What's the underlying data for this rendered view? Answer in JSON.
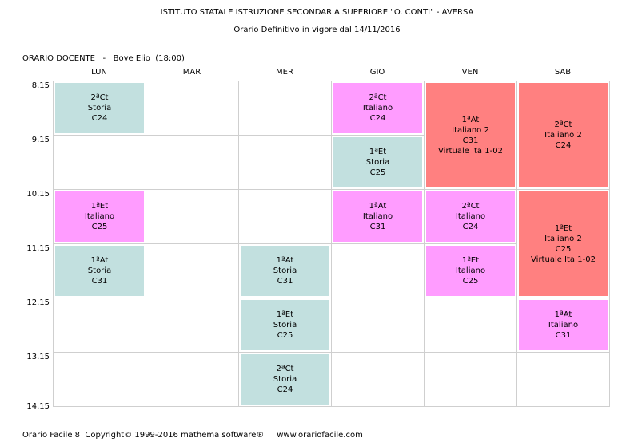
{
  "header": {
    "title": "ISTITUTO STATALE ISTRUZIONE SECONDARIA SUPERIORE \"O. CONTI\" - AVERSA",
    "subtitle": "Orario Definitivo in vigore dal 14/11/2016"
  },
  "teacher_line": "ORARIO DOCENTE   -   Bove Elio  (18:00)",
  "days": [
    "LUN",
    "MAR",
    "MER",
    "GIO",
    "VEN",
    "SAB"
  ],
  "times": [
    "8.15",
    "9.15",
    "10.15",
    "11.15",
    "12.15",
    "13.15",
    "14.15"
  ],
  "colors": {
    "storia": "#c2e0df",
    "italiano": "#ff9cff",
    "italiano2": "#ff8080"
  },
  "lessons": [
    {
      "day": 0,
      "start": 0,
      "span": 1,
      "kind": "storia",
      "lines": [
        "2ªCt",
        "Storia",
        "C24"
      ]
    },
    {
      "day": 0,
      "start": 2,
      "span": 1,
      "kind": "italiano",
      "lines": [
        "1ªEt",
        "Italiano",
        "C25"
      ]
    },
    {
      "day": 0,
      "start": 3,
      "span": 1,
      "kind": "storia",
      "lines": [
        "1ªAt",
        "Storia",
        "C31"
      ]
    },
    {
      "day": 2,
      "start": 3,
      "span": 1,
      "kind": "storia",
      "lines": [
        "1ªAt",
        "Storia",
        "C31"
      ]
    },
    {
      "day": 2,
      "start": 4,
      "span": 1,
      "kind": "storia",
      "lines": [
        "1ªEt",
        "Storia",
        "C25"
      ]
    },
    {
      "day": 2,
      "start": 5,
      "span": 1,
      "kind": "storia",
      "lines": [
        "2ªCt",
        "Storia",
        "C24"
      ]
    },
    {
      "day": 3,
      "start": 0,
      "span": 1,
      "kind": "italiano",
      "lines": [
        "2ªCt",
        "Italiano",
        "C24"
      ]
    },
    {
      "day": 3,
      "start": 1,
      "span": 1,
      "kind": "storia",
      "lines": [
        "1ªEt",
        "Storia",
        "C25"
      ]
    },
    {
      "day": 3,
      "start": 2,
      "span": 1,
      "kind": "italiano",
      "lines": [
        "1ªAt",
        "Italiano",
        "C31"
      ]
    },
    {
      "day": 4,
      "start": 0,
      "span": 2,
      "kind": "italiano2",
      "lines": [
        "1ªAt",
        "Italiano 2",
        "C31",
        "Virtuale Ita 1-02"
      ]
    },
    {
      "day": 4,
      "start": 2,
      "span": 1,
      "kind": "italiano",
      "lines": [
        "2ªCt",
        "Italiano",
        "C24"
      ]
    },
    {
      "day": 4,
      "start": 3,
      "span": 1,
      "kind": "italiano",
      "lines": [
        "1ªEt",
        "Italiano",
        "C25"
      ]
    },
    {
      "day": 5,
      "start": 0,
      "span": 2,
      "kind": "italiano2",
      "lines": [
        "2ªCt",
        "Italiano 2",
        "C24"
      ]
    },
    {
      "day": 5,
      "start": 2,
      "span": 2,
      "kind": "italiano2",
      "lines": [
        "1ªEt",
        "Italiano 2",
        "C25",
        "Virtuale Ita 1-02"
      ]
    },
    {
      "day": 5,
      "start": 4,
      "span": 1,
      "kind": "italiano",
      "lines": [
        "1ªAt",
        "Italiano",
        "C31"
      ]
    }
  ],
  "footer": "Orario Facile 8  Copyright© 1999-2016 mathema software®     www.orariofacile.com"
}
